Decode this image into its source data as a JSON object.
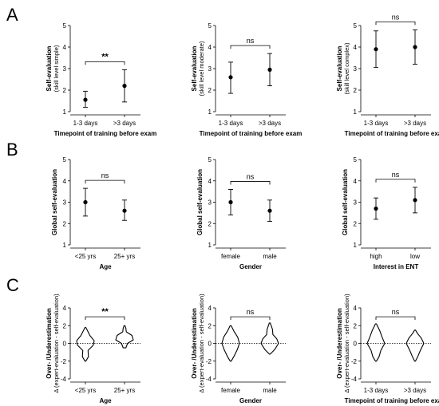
{
  "rows": [
    {
      "letter": "A"
    },
    {
      "letter": "B"
    },
    {
      "letter": "C"
    }
  ],
  "chart_data": [
    {
      "type": "scatter",
      "style": "mean-error",
      "row": 0,
      "ylabel": "Self-evaluation",
      "ylabel_sub": "(skill level simple)",
      "xlabel": "Timepoint of training before exam",
      "ylim": [
        1,
        5
      ],
      "yticks": [
        1,
        2,
        3,
        4,
        5
      ],
      "categories": [
        "1-3 days",
        ">3 days"
      ],
      "means": [
        1.55,
        2.2
      ],
      "err_low": [
        1.2,
        1.45
      ],
      "err_high": [
        1.95,
        2.95
      ],
      "significance": "**"
    },
    {
      "type": "scatter",
      "style": "mean-error",
      "row": 0,
      "ylabel": "Self-evaluation",
      "ylabel_sub": "(skill level moderate)",
      "xlabel": "Timepoint of training before exam",
      "ylim": [
        1,
        5
      ],
      "yticks": [
        1,
        2,
        3,
        4,
        5
      ],
      "categories": [
        "1-3 days",
        ">3 days"
      ],
      "means": [
        2.6,
        2.95
      ],
      "err_low": [
        1.85,
        2.2
      ],
      "err_high": [
        3.3,
        3.7
      ],
      "significance": "ns"
    },
    {
      "type": "scatter",
      "style": "mean-error",
      "row": 0,
      "ylabel": "Self-evaluation",
      "ylabel_sub": "(skill level complex)",
      "xlabel": "Timepoint of training before exam",
      "ylim": [
        1,
        5
      ],
      "yticks": [
        1,
        2,
        3,
        4,
        5
      ],
      "categories": [
        "1-3 days",
        ">3 days"
      ],
      "means": [
        3.9,
        4.0
      ],
      "err_low": [
        3.05,
        3.2
      ],
      "err_high": [
        4.75,
        4.8
      ],
      "significance": "ns"
    },
    {
      "type": "scatter",
      "style": "mean-error",
      "row": 1,
      "ylabel": "Global self-evaluation",
      "ylabel_sub": "",
      "xlabel": "Age",
      "ylim": [
        1,
        5
      ],
      "yticks": [
        1,
        2,
        3,
        4,
        5
      ],
      "categories": [
        "<25 yrs",
        "25+ yrs"
      ],
      "means": [
        3.0,
        2.6
      ],
      "err_low": [
        2.35,
        2.15
      ],
      "err_high": [
        3.65,
        3.1
      ],
      "significance": "ns"
    },
    {
      "type": "scatter",
      "style": "mean-error",
      "row": 1,
      "ylabel": "Global self-evaluation",
      "ylabel_sub": "",
      "xlabel": "Gender",
      "ylim": [
        1,
        5
      ],
      "yticks": [
        1,
        2,
        3,
        4,
        5
      ],
      "categories": [
        "female",
        "male"
      ],
      "means": [
        3.0,
        2.6
      ],
      "err_low": [
        2.4,
        2.1
      ],
      "err_high": [
        3.6,
        3.1
      ],
      "significance": "ns"
    },
    {
      "type": "scatter",
      "style": "mean-error",
      "row": 1,
      "ylabel": "Global self-evaluation",
      "ylabel_sub": "",
      "xlabel": "Interest in ENT",
      "ylim": [
        1,
        5
      ],
      "yticks": [
        1,
        2,
        3,
        4,
        5
      ],
      "categories": [
        "high",
        "low"
      ],
      "means": [
        2.7,
        3.1
      ],
      "err_low": [
        2.2,
        2.5
      ],
      "err_high": [
        3.2,
        3.7
      ],
      "significance": "ns"
    },
    {
      "type": "violin",
      "row": 2,
      "ylabel": "Over- /Underestimation",
      "ylabel_sub": "Δ (expert-evaluation - self-evaluation)",
      "xlabel": "Age",
      "ylim": [
        -4,
        4
      ],
      "yticks": [
        -4,
        -2,
        0,
        2,
        4
      ],
      "zero_line": true,
      "categories": [
        "<25 yrs",
        "25+ yrs"
      ],
      "violins": [
        {
          "min": -2.0,
          "max": 1.8,
          "widths": [
            [
              -2.0,
              0.05
            ],
            [
              -1.5,
              0.35
            ],
            [
              -0.8,
              0.3
            ],
            [
              -0.2,
              0.9
            ],
            [
              0.3,
              1.0
            ],
            [
              0.9,
              0.5
            ],
            [
              1.4,
              0.25
            ],
            [
              1.8,
              0.05
            ]
          ]
        },
        {
          "min": -0.5,
          "max": 2.0,
          "widths": [
            [
              -0.5,
              0.15
            ],
            [
              0.0,
              0.35
            ],
            [
              0.4,
              1.0
            ],
            [
              0.9,
              0.85
            ],
            [
              1.3,
              0.2
            ],
            [
              1.7,
              0.15
            ],
            [
              2.0,
              0.05
            ]
          ]
        }
      ],
      "significance": "**"
    },
    {
      "type": "violin",
      "row": 2,
      "ylabel": "Over- /Underestimation",
      "ylabel_sub": "Δ (expert-evaluation - self-evaluation)",
      "xlabel": "Gender",
      "ylim": [
        -4,
        4
      ],
      "yticks": [
        -4,
        -2,
        0,
        2,
        4
      ],
      "zero_line": true,
      "categories": [
        "female",
        "male"
      ],
      "violins": [
        {
          "min": -2.0,
          "max": 2.0,
          "widths": [
            [
              -2.0,
              0.05
            ],
            [
              -1.5,
              0.35
            ],
            [
              -0.7,
              0.75
            ],
            [
              0.0,
              1.0
            ],
            [
              0.7,
              0.8
            ],
            [
              1.4,
              0.35
            ],
            [
              2.0,
              0.05
            ]
          ]
        },
        {
          "min": -1.2,
          "max": 2.3,
          "widths": [
            [
              -1.2,
              0.05
            ],
            [
              -0.7,
              0.55
            ],
            [
              0.0,
              1.0
            ],
            [
              0.5,
              0.8
            ],
            [
              1.0,
              0.35
            ],
            [
              1.6,
              0.3
            ],
            [
              2.3,
              0.05
            ]
          ]
        }
      ],
      "significance": "ns"
    },
    {
      "type": "violin",
      "row": 2,
      "ylabel": "Over- /Underestimation",
      "ylabel_sub": "Δ (expert-evaluation - self-evaluation)",
      "xlabel": "Timepoint of training before exam",
      "ylim": [
        -4,
        4
      ],
      "yticks": [
        -4,
        -2,
        0,
        2,
        4
      ],
      "zero_line": true,
      "categories": [
        "1-3 days",
        ">3 days"
      ],
      "violins": [
        {
          "min": -2.0,
          "max": 2.2,
          "widths": [
            [
              -2.0,
              0.05
            ],
            [
              -1.5,
              0.35
            ],
            [
              -0.8,
              0.55
            ],
            [
              0.0,
              1.0
            ],
            [
              0.7,
              0.7
            ],
            [
              1.4,
              0.45
            ],
            [
              2.2,
              0.05
            ]
          ]
        },
        {
          "min": -2.0,
          "max": 1.5,
          "widths": [
            [
              -2.0,
              0.05
            ],
            [
              -1.5,
              0.3
            ],
            [
              -0.8,
              0.6
            ],
            [
              0.0,
              1.0
            ],
            [
              0.6,
              0.7
            ],
            [
              1.1,
              0.3
            ],
            [
              1.5,
              0.05
            ]
          ]
        }
      ],
      "significance": "ns"
    }
  ]
}
